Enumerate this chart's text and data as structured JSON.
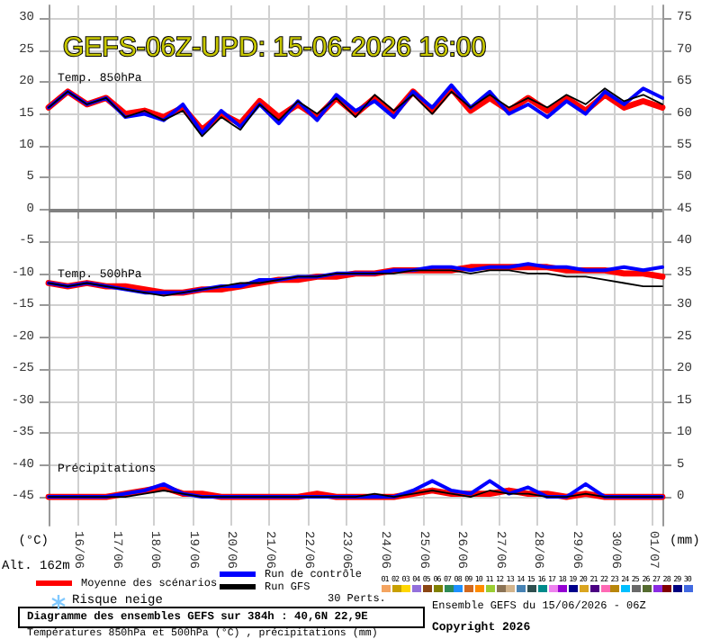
{
  "chart_data": {
    "type": "line",
    "title": "GEFS-06Z-UPD: 15-06-2026 16:00",
    "ylabel": "(°C)",
    "y2label": "(mm)",
    "x": [
      "2026-06-15T06:00",
      "2026-06-15T18:00",
      "2026-06-16T06:00",
      "2026-06-16T18:00",
      "2026-06-17T06:00",
      "2026-06-17T18:00",
      "2026-06-18T06:00",
      "2026-06-18T18:00",
      "2026-06-19T06:00",
      "2026-06-19T18:00",
      "2026-06-20T06:00",
      "2026-06-20T18:00",
      "2026-06-21T06:00",
      "2026-06-21T18:00",
      "2026-06-22T06:00",
      "2026-06-22T18:00",
      "2026-06-23T06:00",
      "2026-06-23T18:00",
      "2026-06-24T06:00",
      "2026-06-24T18:00",
      "2026-06-25T06:00",
      "2026-06-25T18:00",
      "2026-06-26T06:00",
      "2026-06-26T18:00",
      "2026-06-27T06:00",
      "2026-06-27T18:00",
      "2026-06-28T06:00",
      "2026-06-28T18:00",
      "2026-06-29T06:00",
      "2026-06-29T18:00",
      "2026-06-30T06:00",
      "2026-06-30T18:00",
      "2026-07-01T06:00"
    ],
    "series": [
      {
        "name": "Moyenne des scénarios",
        "color": "#ff0000",
        "values": [
          16,
          18.5,
          16.5,
          17.5,
          15,
          15.5,
          14.5,
          16,
          12.5,
          15,
          13.5,
          17,
          14.5,
          16.5,
          14.5,
          17.5,
          15,
          17.5,
          15,
          18.5,
          15.5,
          19,
          15.5,
          17.5,
          15.5,
          17.5,
          15.5,
          17.5,
          15.5,
          18,
          16,
          17,
          16
        ]
      },
      {
        "name": "Run de contrôle",
        "color": "#0000ff",
        "values": [
          16,
          18.5,
          16.5,
          17.5,
          14.5,
          15,
          14,
          16.5,
          12,
          15.5,
          13,
          16.5,
          13.5,
          17,
          14,
          18,
          15.5,
          17,
          14.5,
          18.5,
          16,
          19.5,
          16,
          18.5,
          15,
          16.5,
          14.5,
          17,
          15,
          18.5,
          16.5,
          19,
          17.5
        ]
      },
      {
        "name": "Run GFS",
        "color": "#000000",
        "values": [
          16,
          18.5,
          16.5,
          17.5,
          14.5,
          15.5,
          14,
          15.5,
          11.5,
          14.5,
          12.5,
          16.5,
          14,
          17,
          15,
          17.5,
          14.5,
          18,
          15.5,
          18,
          15,
          18.5,
          16,
          18,
          16,
          17.5,
          16,
          18,
          16.5,
          19,
          17,
          18,
          16.5
        ]
      },
      {
        "color": "#ff0000",
        "values": [
          -11.5,
          -12,
          -11.5,
          -12,
          -12,
          -12.5,
          -13,
          -13,
          -12.5,
          -12.5,
          -12,
          -11.5,
          -11,
          -11,
          -10.5,
          -10.5,
          -10,
          -10,
          -9.5,
          -9.5,
          -9.5,
          -9.5,
          -9,
          -9,
          -9,
          -9,
          -9,
          -9.5,
          -9.5,
          -9.5,
          -10,
          -10,
          -10.5
        ]
      },
      {
        "color": "#0000ff",
        "values": [
          -11.5,
          -12,
          -11.5,
          -12,
          -12.5,
          -13,
          -13,
          -13,
          -12.5,
          -12,
          -12,
          -11,
          -11,
          -10.5,
          -10.5,
          -10,
          -10,
          -10,
          -9.5,
          -9.5,
          -9,
          -9,
          -9.5,
          -9,
          -9,
          -8.5,
          -9,
          -9,
          -9.5,
          -9.5,
          -9,
          -9.5,
          -9
        ]
      },
      {
        "color": "#000000",
        "values": [
          -11.5,
          -12,
          -11.5,
          -12,
          -12.5,
          -13,
          -13.5,
          -13,
          -12.5,
          -12,
          -11.5,
          -11.5,
          -11,
          -10.5,
          -10.5,
          -10,
          -10,
          -10,
          -10,
          -9.5,
          -9.5,
          -9.5,
          -10,
          -9.5,
          -9.5,
          -10,
          -10,
          -10.5,
          -10.5,
          -11,
          -11.5,
          -12,
          -12
        ]
      },
      {
        "color": "#ff0000",
        "axis": "y2",
        "values": [
          0,
          0,
          0,
          0,
          0.5,
          1,
          1.5,
          0.5,
          0.5,
          0,
          0,
          0,
          0,
          0,
          0.5,
          0,
          0,
          0,
          0,
          0.5,
          1,
          0.5,
          0.5,
          0.5,
          1,
          0.5,
          0.5,
          0,
          0.5,
          0,
          0,
          0,
          0
        ]
      },
      {
        "color": "#0000ff",
        "axis": "y2",
        "values": [
          0,
          0,
          0,
          0,
          0.5,
          1,
          2,
          0.5,
          0,
          0,
          0,
          0,
          0,
          0,
          0,
          0,
          0,
          0,
          0,
          1,
          2.5,
          1,
          0.5,
          2.5,
          0.5,
          1.5,
          0,
          0,
          2,
          0,
          0,
          0,
          0
        ]
      },
      {
        "color": "#000000",
        "axis": "y2",
        "values": [
          0,
          0,
          0,
          0,
          0,
          0.5,
          1,
          0.5,
          0,
          0,
          0,
          0,
          0,
          0,
          0,
          0,
          0,
          0.5,
          0,
          0.5,
          1,
          0.5,
          0,
          1,
          0.5,
          0.5,
          0,
          0,
          0.5,
          0,
          0,
          0,
          0
        ]
      }
    ],
    "xlim": [
      "2026-06-15T06:00",
      "2026-07-01T06:00"
    ],
    "xticks": [
      {
        "value": "2026-06-16",
        "label": "16/06"
      },
      {
        "value": "2026-06-17",
        "label": "17/06"
      },
      {
        "value": "2026-06-18",
        "label": "18/06"
      },
      {
        "value": "2026-06-19",
        "label": "19/06"
      },
      {
        "value": "2026-06-20",
        "label": "20/06"
      },
      {
        "value": "2026-06-21",
        "label": "21/06"
      },
      {
        "value": "2026-06-22",
        "label": "22/06"
      },
      {
        "value": "2026-06-23",
        "label": "23/06"
      },
      {
        "value": "2026-06-24",
        "label": "24/06"
      },
      {
        "value": "2026-06-25",
        "label": "25/06"
      },
      {
        "value": "2026-06-26",
        "label": "26/06"
      },
      {
        "value": "2026-06-27",
        "label": "27/06"
      },
      {
        "value": "2026-06-28",
        "label": "28/06"
      },
      {
        "value": "2026-06-29",
        "label": "29/06"
      },
      {
        "value": "2026-06-30",
        "label": "30/06"
      },
      {
        "value": "2026-07-01",
        "label": "01/07"
      }
    ],
    "ylim": [
      -49.5,
      32
    ],
    "yticks": [
      -45,
      -40,
      -35,
      -30,
      -25,
      -20,
      -15,
      -10,
      -5,
      0,
      5,
      10,
      15,
      20,
      25,
      30
    ],
    "y2lim": [
      -4.5,
      77
    ],
    "y2ticks": [
      0,
      5,
      10,
      15,
      20,
      25,
      30,
      35,
      40,
      45,
      50,
      55,
      60,
      65,
      70,
      75
    ],
    "ref_lines": [
      {
        "axis": "y",
        "value": 0,
        "color": "#808080"
      }
    ],
    "grid": true,
    "legend": "bottom",
    "annotations": [
      "Temp. 850hPa",
      "Temp. 500hPa",
      "Précipitations",
      "Alt. 162m",
      "Risque neige",
      "30 Perts.",
      "Diagramme des ensembles GEFS sur 384h : 40,6N 22,9E",
      "Températures 850hPa et 500hPa (°C) , précipitations (mm)",
      "Ensemble GEFS du 15/06/2026 - 06Z",
      "Copyright 2026",
      "01",
      "02",
      "03",
      "04",
      "05",
      "06",
      "07",
      "08",
      "09",
      "10",
      "11",
      "12",
      "13",
      "14",
      "15",
      "16",
      "17",
      "18",
      "19",
      "20",
      "21",
      "22",
      "23",
      "24",
      "25",
      "26",
      "27",
      "28",
      "29",
      "30"
    ]
  }
}
